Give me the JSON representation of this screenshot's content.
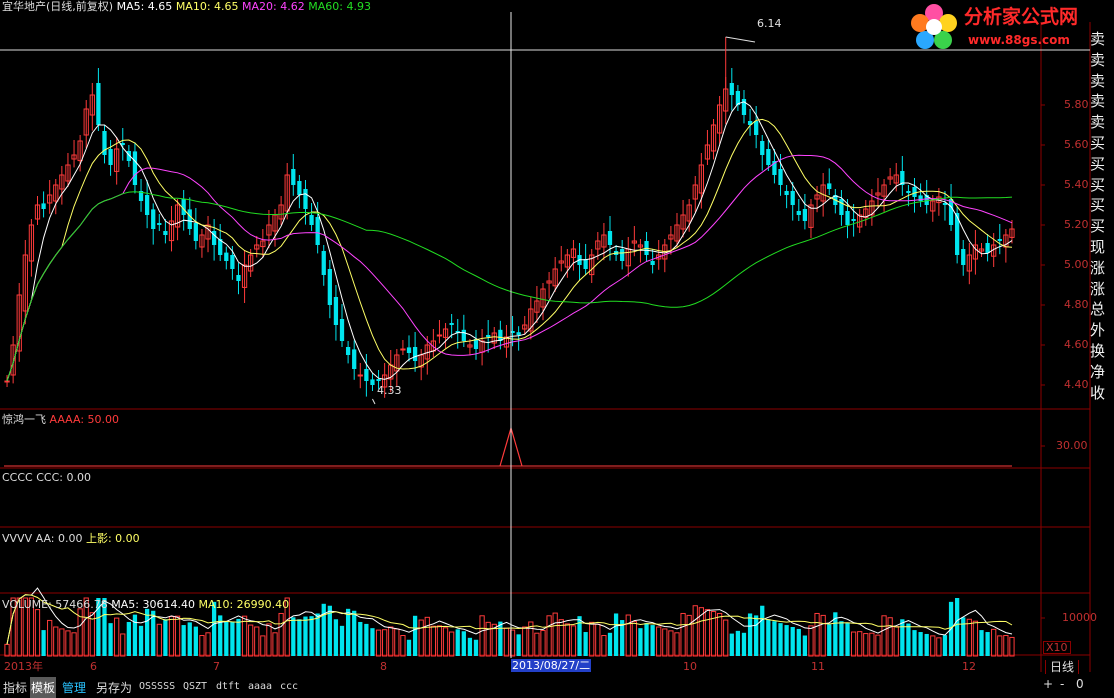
{
  "header": {
    "stock": "宜华地产(日线,前复权)",
    "ma5": "MA5: 4.65",
    "ma10": "MA10: 4.65",
    "ma20": "MA20: 4.62",
    "ma60": "MA60: 4.93"
  },
  "annotations": {
    "high": "6.14",
    "low": "4.33"
  },
  "price_axis": [
    "5.80",
    "5.60",
    "5.40",
    "5.20",
    "5.00",
    "4.80",
    "4.60",
    "4.40"
  ],
  "panels": {
    "jinghong": {
      "name": "惊鸿一飞",
      "value": "AAAA: 50.00",
      "tick": "30.00"
    },
    "cccc": {
      "name": "CCCC",
      "value": "CCC: 0.00"
    },
    "vvvv": {
      "name": "VVVV",
      "value": "AA: 0.00",
      "extra": "上影: 0.00"
    },
    "volume": {
      "name": "VOLUME: 57466.78",
      "ma5": "MA5: 30614.40",
      "ma10": "MA10: 26990.40",
      "tick": "10000",
      "unit": "X10"
    }
  },
  "time_axis": {
    "start": "2013年",
    "months": [
      "6",
      "7",
      "8",
      "10",
      "11",
      "12"
    ],
    "cursor_date": "2013/08/27/二"
  },
  "right_panel": {
    "items": [
      "卖五",
      "卖四",
      "卖三",
      "卖二",
      "卖一",
      "买一",
      "买二",
      "买三",
      "买四",
      "买五",
      "现价",
      "涨跌",
      "涨幅",
      "总量",
      "外盘",
      "换手",
      "净资",
      "收益"
    ],
    "period": "日线",
    "controls": [
      "+",
      "-",
      "0"
    ]
  },
  "bottom_tabs": [
    {
      "label": "指标",
      "active": false,
      "blue": false
    },
    {
      "label": "模板",
      "active": true,
      "blue": false
    },
    {
      "label": "管理",
      "active": false,
      "blue": true
    },
    {
      "label": "另存为",
      "active": false,
      "blue": false
    },
    {
      "label": "OSSSSS",
      "active": false,
      "blue": false
    },
    {
      "label": "QSZT",
      "active": false,
      "blue": false
    },
    {
      "label": "dtft",
      "active": false,
      "blue": false
    },
    {
      "label": "aaaa",
      "active": false,
      "blue": false
    },
    {
      "label": "ccc",
      "active": false,
      "blue": false
    }
  ],
  "watermark": {
    "title": "分析家公式网",
    "url": "www.88gs.com"
  },
  "colors": {
    "up": "#ff3b3b",
    "down": "#00e5ee",
    "ma5": "#ffffff",
    "ma10": "#ffff66",
    "ma20": "#ff44ff",
    "ma60": "#22dd22",
    "grid": "#8b0000"
  },
  "chart_data": {
    "type": "candlestick",
    "price_range": [
      4.3,
      6.2
    ],
    "cursor_date": "2013/08/27",
    "high": 6.14,
    "low": 4.33,
    "closes": [
      4.42,
      4.6,
      4.85,
      5.05,
      5.2,
      5.3,
      5.28,
      5.35,
      5.4,
      5.45,
      5.5,
      5.55,
      5.62,
      5.78,
      5.85,
      5.7,
      5.55,
      5.5,
      5.58,
      5.6,
      5.52,
      5.4,
      5.32,
      5.25,
      5.18,
      5.2,
      5.15,
      5.22,
      5.3,
      5.25,
      5.18,
      5.12,
      5.15,
      5.2,
      5.1,
      5.05,
      5.02,
      4.98,
      4.92,
      5.0,
      5.05,
      5.1,
      5.12,
      5.2,
      5.25,
      5.3,
      5.45,
      5.4,
      5.35,
      5.28,
      5.2,
      5.1,
      4.95,
      4.8,
      4.7,
      4.62,
      4.55,
      4.48,
      4.45,
      4.42,
      4.4,
      4.42,
      4.45,
      4.5,
      4.55,
      4.58,
      4.56,
      4.52,
      4.55,
      4.6,
      4.62,
      4.65,
      4.68,
      4.7,
      4.66,
      4.62,
      4.6,
      4.58,
      4.62,
      4.64,
      4.66,
      4.62,
      4.64,
      4.66,
      4.65,
      4.7,
      4.78,
      4.82,
      4.88,
      4.92,
      4.98,
      5.02,
      5.05,
      5.08,
      5.0,
      4.98,
      5.05,
      5.12,
      5.15,
      5.1,
      5.05,
      5.02,
      5.08,
      5.12,
      5.1,
      5.05,
      5.0,
      5.05,
      5.1,
      5.15,
      5.2,
      5.25,
      5.3,
      5.4,
      5.5,
      5.6,
      5.7,
      5.8,
      5.88,
      5.85,
      5.8,
      5.75,
      5.7,
      5.65,
      5.55,
      5.5,
      5.45,
      5.4,
      5.35,
      5.3,
      5.25,
      5.22,
      5.3,
      5.35,
      5.4,
      5.38,
      5.3,
      5.25,
      5.2,
      5.22,
      5.25,
      5.28,
      5.32,
      5.36,
      5.4,
      5.44,
      5.45,
      5.4,
      5.36,
      5.34,
      5.32,
      5.3,
      5.32,
      5.34,
      5.3,
      5.2,
      5.05,
      5.0,
      5.05,
      5.1,
      5.08,
      5.06,
      5.1,
      5.12,
      5.15,
      5.18
    ],
    "volume_max": 15000
  }
}
